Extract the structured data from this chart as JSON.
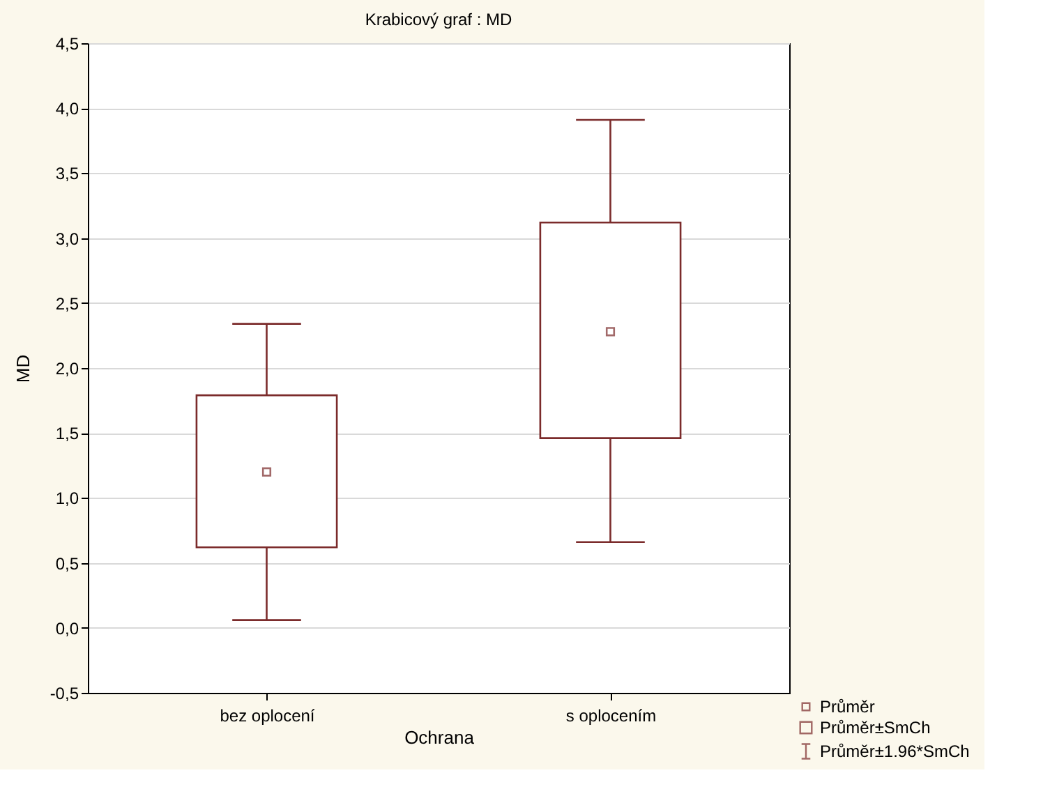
{
  "chart_data": {
    "type": "box",
    "title": "Krabicový graf : MD",
    "xlabel": "Ochrana",
    "ylabel": "MD",
    "categories": [
      "bez oplocení",
      "s oplocením"
    ],
    "series": [
      {
        "color": "#7b2b2b",
        "boxes": [
          {
            "low": 0.06,
            "q1": 0.62,
            "median": 1.2,
            "q3": 1.79,
            "high": 2.34
          },
          {
            "low": 0.66,
            "q1": 1.46,
            "median": 2.28,
            "q3": 3.12,
            "high": 3.91
          }
        ]
      }
    ],
    "ylim": [
      -0.5,
      4.5
    ],
    "yticks": [
      {
        "value": -0.5,
        "label": "-0,5"
      },
      {
        "value": 0,
        "label": "0,0"
      },
      {
        "value": 0.5,
        "label": "0,5"
      },
      {
        "value": 1,
        "label": "1,0"
      },
      {
        "value": 1.5,
        "label": "1,5"
      },
      {
        "value": 2,
        "label": "2,0"
      },
      {
        "value": 2.5,
        "label": "2,5"
      },
      {
        "value": 3,
        "label": "3,0"
      },
      {
        "value": 3.5,
        "label": "3,5"
      },
      {
        "value": 4,
        "label": "4,0"
      },
      {
        "value": 4.5,
        "label": "4,5"
      }
    ],
    "grid": "y",
    "annotations": [
      "Průměr",
      "Průměr±SmCh",
      "Průměr±1.96*SmCh"
    ]
  }
}
